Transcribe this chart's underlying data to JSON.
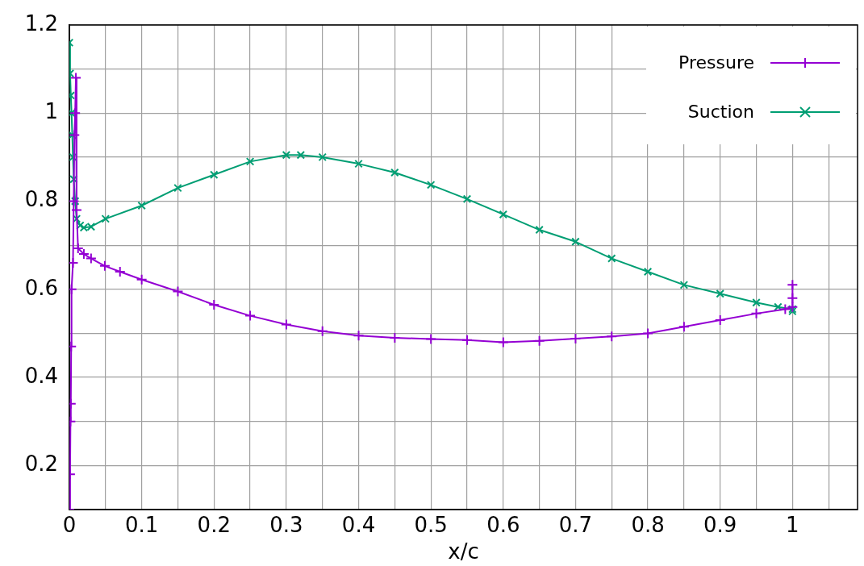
{
  "chart_data": {
    "type": "line",
    "xlabel": "x/c",
    "xlim": [
      0,
      1.09
    ],
    "ylim": [
      0.1,
      1.2
    ],
    "xticks": [
      0,
      {
        "value": 0.05,
        "label": null
      },
      0.1,
      {
        "value": 0.15,
        "label": null
      },
      0.2,
      {
        "value": 0.25,
        "label": null
      },
      0.3,
      {
        "value": 0.35,
        "label": null
      },
      0.4,
      {
        "value": 0.45,
        "label": null
      },
      0.5,
      {
        "value": 0.55,
        "label": null
      },
      0.6,
      {
        "value": 0.65,
        "label": null
      },
      0.7,
      {
        "value": 0.75,
        "label": null
      },
      0.8,
      {
        "value": 0.85,
        "label": null
      },
      0.9,
      {
        "value": 0.95,
        "label": null
      },
      1,
      {
        "value": 1.05,
        "label": null
      }
    ],
    "yticks": [
      0.2,
      {
        "value": 0.3,
        "label": null
      },
      0.4,
      {
        "value": 0.5,
        "label": null
      },
      0.6,
      {
        "value": 0.7,
        "label": null
      },
      0.8,
      {
        "value": 0.9,
        "label": null
      },
      1,
      {
        "value": 1.1,
        "label": null
      },
      1.2
    ],
    "grid": true,
    "legend": "top right",
    "line_style": "solid",
    "series": [
      {
        "name": "Pressure",
        "color": "#9400d3",
        "marker": "cross",
        "x": [
          0,
          0.001,
          0.0015,
          0.002,
          0.0025,
          0.003,
          0.005,
          0.006,
          0.007,
          0.008,
          0.009,
          0.01,
          0.012,
          0.02,
          0.03,
          0.049,
          0.07,
          0.1,
          0.15,
          0.2,
          0.25,
          0.3,
          0.35,
          0.4,
          0.45,
          0.5,
          0.55,
          0.6,
          0.65,
          0.7,
          0.75,
          0.8,
          0.85,
          0.9,
          0.95,
          0.99,
          1,
          1,
          1
        ],
        "values": [
          0.1,
          0.18,
          0.3,
          0.34,
          0.47,
          0.6,
          0.66,
          0.8,
          0.95,
          1.0,
          1.08,
          0.78,
          0.693,
          0.68,
          0.67,
          0.653,
          0.64,
          0.622,
          0.595,
          0.565,
          0.54,
          0.52,
          0.505,
          0.495,
          0.49,
          0.487,
          0.485,
          0.48,
          0.483,
          0.488,
          0.493,
          0.5,
          0.515,
          0.53,
          0.545,
          0.555,
          0.56,
          0.61,
          0.58
        ]
      },
      {
        "name": "Suction",
        "color": "#009e73",
        "marker": "x",
        "x": [
          0,
          0.001,
          0.002,
          0.003,
          0.004,
          0.005,
          0.006,
          0.008,
          0.01,
          0.015,
          0.02,
          0.03,
          0.05,
          0.1,
          0.15,
          0.2,
          0.25,
          0.3,
          0.32,
          0.35,
          0.4,
          0.45,
          0.5,
          0.55,
          0.6,
          0.65,
          0.7,
          0.75,
          0.8,
          0.85,
          0.9,
          0.95,
          0.98,
          1,
          1
        ],
        "values": [
          1.16,
          1.09,
          1.04,
          1.0,
          0.95,
          0.9,
          0.85,
          0.8,
          0.76,
          0.745,
          0.74,
          0.742,
          0.76,
          0.79,
          0.83,
          0.86,
          0.89,
          0.905,
          0.905,
          0.9,
          0.885,
          0.865,
          0.837,
          0.805,
          0.77,
          0.735,
          0.708,
          0.67,
          0.64,
          0.61,
          0.59,
          0.57,
          0.56,
          0.555,
          0.55
        ]
      }
    ]
  }
}
